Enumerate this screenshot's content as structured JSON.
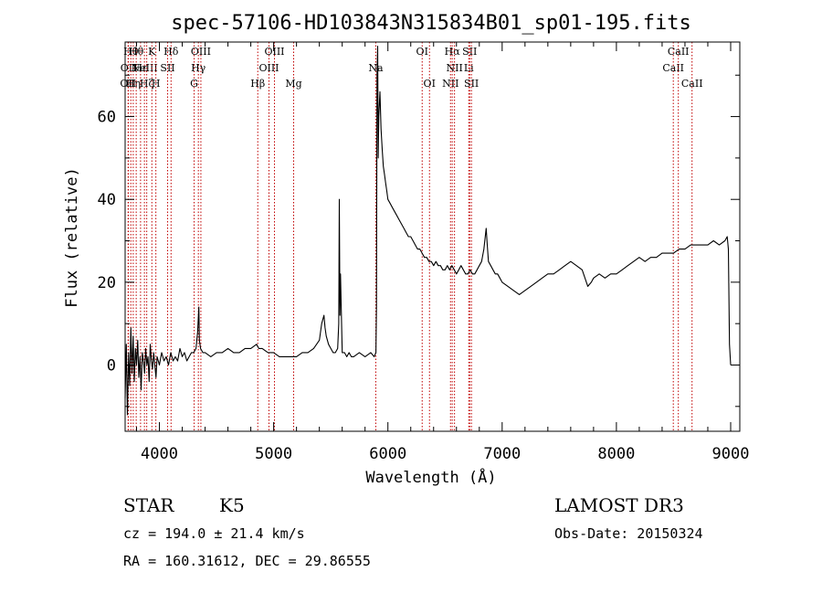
{
  "chart_data": {
    "type": "line",
    "title": "spec-57106-HD103843N315834B01_sp01-195.fits",
    "xlabel": "Wavelength (Å)",
    "ylabel": "Flux (relative)",
    "xlim": [
      3700,
      9080
    ],
    "ylim": [
      -16,
      78
    ],
    "x_ticks": [
      4000,
      5000,
      6000,
      7000,
      8000,
      9000
    ],
    "y_ticks": [
      0,
      20,
      40,
      60
    ],
    "grid": false,
    "series": [
      {
        "x": [
          3700,
          3710,
          3720,
          3730,
          3740,
          3750,
          3760,
          3770,
          3780,
          3790,
          3800,
          3810,
          3820,
          3830,
          3840,
          3850,
          3860,
          3870,
          3880,
          3890,
          3900,
          3910,
          3920,
          3930,
          3940,
          3950,
          3960,
          3970,
          3980,
          3990,
          4000,
          4020,
          4040,
          4060,
          4080,
          4100,
          4120,
          4140,
          4160,
          4180,
          4200,
          4220,
          4240,
          4260,
          4280,
          4300,
          4320,
          4335,
          4345,
          4350,
          4360,
          4380,
          4400,
          4450,
          4500,
          4550,
          4600,
          4650,
          4700,
          4750,
          4800,
          4850,
          4870,
          4900,
          4950,
          5000,
          5050,
          5100,
          5150,
          5200,
          5250,
          5300,
          5350,
          5400,
          5420,
          5440,
          5450,
          5460,
          5480,
          5500,
          5520,
          5540,
          5560,
          5570,
          5575,
          5580,
          5585,
          5600,
          5620,
          5640,
          5660,
          5680,
          5700,
          5750,
          5800,
          5850,
          5880,
          5895,
          5900,
          5905,
          5910,
          5915,
          5920,
          5930,
          5940,
          5950,
          5960,
          5970,
          5980,
          5990,
          6000,
          6020,
          6040,
          6060,
          6080,
          6100,
          6120,
          6140,
          6160,
          6180,
          6200,
          6220,
          6240,
          6260,
          6280,
          6300,
          6320,
          6340,
          6360,
          6380,
          6400,
          6420,
          6440,
          6460,
          6480,
          6500,
          6520,
          6540,
          6560,
          6580,
          6600,
          6620,
          6640,
          6660,
          6680,
          6700,
          6720,
          6740,
          6760,
          6780,
          6800,
          6820,
          6840,
          6860,
          6870,
          6880,
          6900,
          6920,
          6940,
          6960,
          6980,
          7000,
          7050,
          7100,
          7150,
          7200,
          7250,
          7300,
          7350,
          7400,
          7450,
          7500,
          7550,
          7600,
          7650,
          7700,
          7750,
          7780,
          7800,
          7850,
          7900,
          7950,
          8000,
          8050,
          8100,
          8150,
          8200,
          8250,
          8300,
          8350,
          8400,
          8450,
          8500,
          8550,
          8600,
          8650,
          8700,
          8750,
          8800,
          8850,
          8900,
          8950,
          8970,
          8980,
          8990,
          9000
        ],
        "y": [
          -8,
          5,
          -12,
          3,
          -5,
          9,
          -2,
          7,
          -4,
          4,
          0,
          6,
          -3,
          2,
          -6,
          3,
          1,
          -2,
          4,
          0,
          2,
          -4,
          5,
          1,
          -1,
          3,
          0,
          -3,
          2,
          1,
          0,
          3,
          1,
          2,
          0,
          3,
          1,
          2,
          1,
          4,
          2,
          3,
          1,
          2,
          3,
          3,
          4,
          8,
          14,
          6,
          4,
          3,
          3,
          2,
          3,
          3,
          4,
          3,
          3,
          4,
          4,
          5,
          4,
          4,
          3,
          3,
          2,
          2,
          2,
          2,
          3,
          3,
          4,
          6,
          10,
          12,
          9,
          7,
          5,
          4,
          3,
          3,
          4,
          10,
          40,
          12,
          22,
          3,
          3,
          2,
          3,
          2,
          2,
          3,
          2,
          3,
          2,
          3,
          14,
          70,
          77,
          50,
          60,
          66,
          57,
          52,
          48,
          46,
          44,
          42,
          40,
          39,
          38,
          37,
          36,
          35,
          34,
          33,
          32,
          31,
          31,
          30,
          29,
          28,
          28,
          27,
          26,
          26,
          25,
          25,
          24,
          25,
          24,
          24,
          23,
          23,
          24,
          23,
          24,
          23,
          22,
          23,
          24,
          23,
          22,
          22,
          23,
          22,
          22,
          23,
          24,
          25,
          28,
          33,
          29,
          25,
          24,
          23,
          22,
          22,
          21,
          20,
          19,
          18,
          17,
          18,
          19,
          20,
          21,
          22,
          22,
          23,
          24,
          25,
          24,
          23,
          19,
          20,
          21,
          22,
          21,
          22,
          22,
          23,
          24,
          25,
          26,
          25,
          26,
          26,
          27,
          27,
          27,
          28,
          28,
          29,
          29,
          29,
          29,
          30,
          29,
          30,
          31,
          28,
          5,
          0
        ]
      }
    ],
    "lines": [
      {
        "wl": 3726,
        "labels": [
          "OII"
        ],
        "row": 2
      },
      {
        "wl": 3729,
        "labels": [
          "OII"
        ],
        "row": 1
      },
      {
        "wl": 3750,
        "labels": [
          "Hθ"
        ],
        "row": 0
      },
      {
        "wl": 3771,
        "labels": [
          "Hη"
        ],
        "row": 2
      },
      {
        "wl": 3797,
        "labels": [
          "Hθ"
        ],
        "row": 0
      },
      {
        "wl": 3835,
        "labels": [
          "Hε"
        ],
        "row": 1
      },
      {
        "wl": 3869,
        "labels": [
          "NeIII"
        ],
        "row": 1
      },
      {
        "wl": 3889,
        "labels": [
          "Hζ"
        ],
        "row": 2
      },
      {
        "wl": 3934,
        "labels": [
          "K"
        ],
        "row": 0
      },
      {
        "wl": 3969,
        "labels": [
          "H"
        ],
        "row": 2
      },
      {
        "wl": 4072,
        "labels": [
          "SII"
        ],
        "row": 1
      },
      {
        "wl": 4102,
        "labels": [
          "Hδ"
        ],
        "row": 0
      },
      {
        "wl": 4304,
        "labels": [
          "G"
        ],
        "row": 2
      },
      {
        "wl": 4341,
        "labels": [
          "Hγ"
        ],
        "row": 1
      },
      {
        "wl": 4363,
        "labels": [
          "OIII"
        ],
        "row": 0
      },
      {
        "wl": 4861,
        "labels": [
          "Hβ"
        ],
        "row": 2
      },
      {
        "wl": 4959,
        "labels": [
          "OIII"
        ],
        "row": 1
      },
      {
        "wl": 5007,
        "labels": [
          "OIII"
        ],
        "row": 0
      },
      {
        "wl": 5175,
        "labels": [
          "Mg"
        ],
        "row": 2
      },
      {
        "wl": 5894,
        "labels": [
          "Na"
        ],
        "row": 1
      },
      {
        "wl": 6300,
        "labels": [
          "OI"
        ],
        "row": 0
      },
      {
        "wl": 6364,
        "labels": [
          "OI"
        ],
        "row": 2
      },
      {
        "wl": 6548,
        "labels": [
          "NII"
        ],
        "row": 2
      },
      {
        "wl": 6563,
        "labels": [
          "Hα"
        ],
        "row": 0
      },
      {
        "wl": 6583,
        "labels": [
          "NII"
        ],
        "row": 1
      },
      {
        "wl": 6708,
        "labels": [
          "Li"
        ],
        "row": 1
      },
      {
        "wl": 6716,
        "labels": [
          "SII"
        ],
        "row": 0
      },
      {
        "wl": 6731,
        "labels": [
          "SII"
        ],
        "row": 2
      },
      {
        "wl": 8498,
        "labels": [
          "CaII"
        ],
        "row": 1
      },
      {
        "wl": 8542,
        "labels": [
          "CaII"
        ],
        "row": 0
      },
      {
        "wl": 8662,
        "labels": [
          "CaII"
        ],
        "row": 2
      }
    ]
  },
  "info": {
    "class_label": "STAR",
    "subclass": "K5",
    "survey": "LAMOST DR3",
    "cz_line": "cz = 194.0 ± 21.4 km/s",
    "obs_date_line": "Obs-Date: 20150324",
    "radec_line": "RA = 160.31612, DEC =  29.86555"
  },
  "colors": {
    "spectrum": "#000000",
    "line_markers": "#c00000",
    "axes": "#000000"
  }
}
